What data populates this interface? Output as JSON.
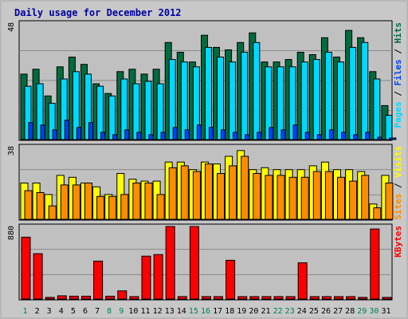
{
  "title": "Daily usage for December 2012",
  "colors": {
    "hits": "#006b3f",
    "files": "#00d8ff",
    "pages": "#0040ff",
    "visits": "#ffff00",
    "sites": "#ff8c00",
    "kbytes": "#ff0000",
    "weekday_tick": "#000000",
    "weekend_tick": "#00805a",
    "outline": "#000000"
  },
  "chart_data": [
    {
      "type": "bar",
      "title": "Daily usage for December 2012",
      "ymax_label": "48",
      "ylim": [
        0,
        48
      ],
      "grid": true,
      "categories": [
        "1",
        "2",
        "3",
        "4",
        "5",
        "6",
        "7",
        "8",
        "9",
        "10",
        "11",
        "12",
        "13",
        "14",
        "15",
        "16",
        "17",
        "18",
        "19",
        "20",
        "21",
        "22",
        "23",
        "24",
        "25",
        "26",
        "27",
        "28",
        "29",
        "30",
        "31"
      ],
      "weekend": [
        "1",
        "8",
        "9",
        "15",
        "16",
        "22",
        "23",
        "29",
        "30"
      ],
      "label_parts": [
        {
          "text": "Pages",
          "color": "#00d8ff"
        },
        {
          "text": " / ",
          "color": "#000000"
        },
        {
          "text": "Files",
          "color": "#0040ff"
        },
        {
          "text": " / ",
          "color": "#000000"
        },
        {
          "text": "Hits",
          "color": "#006b3f"
        }
      ],
      "series": [
        {
          "name": "Hits",
          "color": "#006b3f",
          "values": [
            27,
            29,
            18,
            30,
            34,
            31,
            23,
            19,
            28,
            29,
            27,
            29,
            40,
            36,
            32,
            43,
            38,
            37,
            40,
            44,
            32,
            32,
            33,
            36,
            35,
            42,
            34,
            45,
            42,
            28,
            14
          ]
        },
        {
          "name": "Files",
          "color": "#00d8ff",
          "values": [
            22,
            23,
            15,
            25,
            28,
            27,
            22,
            18,
            25,
            23,
            24,
            23,
            33,
            32,
            30,
            38,
            34,
            32,
            36,
            40,
            30,
            30,
            30,
            32,
            33,
            36,
            32,
            38,
            40,
            25,
            10
          ]
        },
        {
          "name": "Pages",
          "color": "#0040ff",
          "values": [
            7,
            6,
            4,
            8,
            5,
            7,
            3,
            2,
            4,
            3,
            2,
            3,
            5,
            4,
            6,
            5,
            4,
            3,
            2,
            3,
            5,
            4,
            6,
            3,
            2,
            4,
            3,
            2,
            3,
            1,
            0
          ]
        }
      ]
    },
    {
      "type": "bar",
      "ymax_label": "38",
      "ylim": [
        0,
        38
      ],
      "grid": true,
      "categories": [
        "1",
        "2",
        "3",
        "4",
        "5",
        "6",
        "7",
        "8",
        "9",
        "10",
        "11",
        "12",
        "13",
        "14",
        "15",
        "16",
        "17",
        "18",
        "19",
        "20",
        "21",
        "22",
        "23",
        "24",
        "25",
        "26",
        "27",
        "28",
        "29",
        "30",
        "31"
      ],
      "label_parts": [
        {
          "text": "Sites",
          "color": "#ff8c00"
        },
        {
          "text": " / ",
          "color": "#000000"
        },
        {
          "text": "Visits",
          "color": "#ffff00"
        }
      ],
      "series": [
        {
          "name": "Visits",
          "color": "#ffff00",
          "values": [
            19,
            19,
            13,
            23,
            22,
            19,
            17,
            13,
            24,
            21,
            20,
            20,
            30,
            30,
            26,
            30,
            29,
            33,
            36,
            26,
            27,
            26,
            26,
            26,
            28,
            30,
            26,
            26,
            25,
            8,
            23
          ]
        },
        {
          "name": "Sites",
          "color": "#ff8c00",
          "values": [
            15,
            14,
            7,
            18,
            18,
            19,
            12,
            12,
            13,
            19,
            19,
            13,
            27,
            28,
            25,
            29,
            24,
            28,
            33,
            24,
            23,
            23,
            22,
            22,
            25,
            25,
            22,
            20,
            23,
            6,
            19
          ]
        }
      ]
    },
    {
      "type": "bar",
      "ymax_label": "880",
      "ylim": [
        0,
        880
      ],
      "grid": true,
      "categories": [
        "1",
        "2",
        "3",
        "4",
        "5",
        "6",
        "7",
        "8",
        "9",
        "10",
        "11",
        "12",
        "13",
        "14",
        "15",
        "16",
        "17",
        "18",
        "19",
        "20",
        "21",
        "22",
        "23",
        "24",
        "25",
        "26",
        "27",
        "28",
        "29",
        "30",
        "31"
      ],
      "label_parts": [
        {
          "text": "KBytes",
          "color": "#ff0000"
        }
      ],
      "series": [
        {
          "name": "KBytes",
          "color": "#ff0000",
          "values": [
            750,
            550,
            20,
            40,
            35,
            35,
            460,
            35,
            100,
            30,
            520,
            540,
            880,
            30,
            880,
            30,
            30,
            470,
            30,
            30,
            30,
            30,
            30,
            440,
            30,
            30,
            30,
            30,
            20,
            850,
            20
          ]
        }
      ]
    }
  ]
}
